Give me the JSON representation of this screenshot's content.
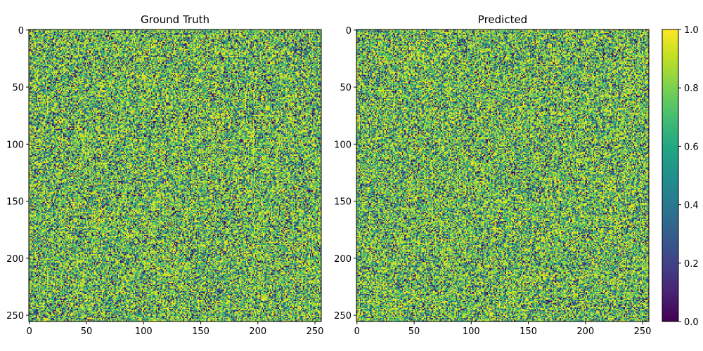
{
  "chart_data": [
    {
      "type": "heatmap",
      "title": "Ground Truth",
      "grid_size": [
        256,
        256
      ],
      "x_ticks": [
        0,
        50,
        100,
        150,
        200,
        250
      ],
      "y_ticks": [
        0,
        50,
        100,
        150,
        200,
        250
      ],
      "xlim": [
        -0.5,
        255.5
      ],
      "ylim": [
        255.5,
        -0.5
      ],
      "value_range": [
        0.0,
        1.0
      ],
      "colormap": "viridis",
      "grid": false,
      "values_note_visible": "dense random-looking texture, values mostly between 0.6 and 1.0 with scattered low (dark) cells"
    },
    {
      "type": "heatmap",
      "title": "Predicted",
      "grid_size": [
        256,
        256
      ],
      "x_ticks": [
        0,
        50,
        100,
        150,
        200,
        250
      ],
      "y_ticks": [
        0,
        50,
        100,
        150,
        200,
        250
      ],
      "xlim": [
        -0.5,
        255.5
      ],
      "ylim": [
        255.5,
        -0.5
      ],
      "value_range": [
        0.0,
        1.0
      ],
      "colormap": "viridis",
      "grid": false
    }
  ],
  "colorbar": {
    "ticks": [
      0.0,
      0.2,
      0.4,
      0.6,
      0.8,
      1.0
    ],
    "tick_labels": [
      "0.0",
      "0.2",
      "0.4",
      "0.6",
      "0.8",
      "1.0"
    ],
    "range": [
      0.0,
      1.0
    ],
    "colormap": "viridis",
    "placement": "right"
  }
}
